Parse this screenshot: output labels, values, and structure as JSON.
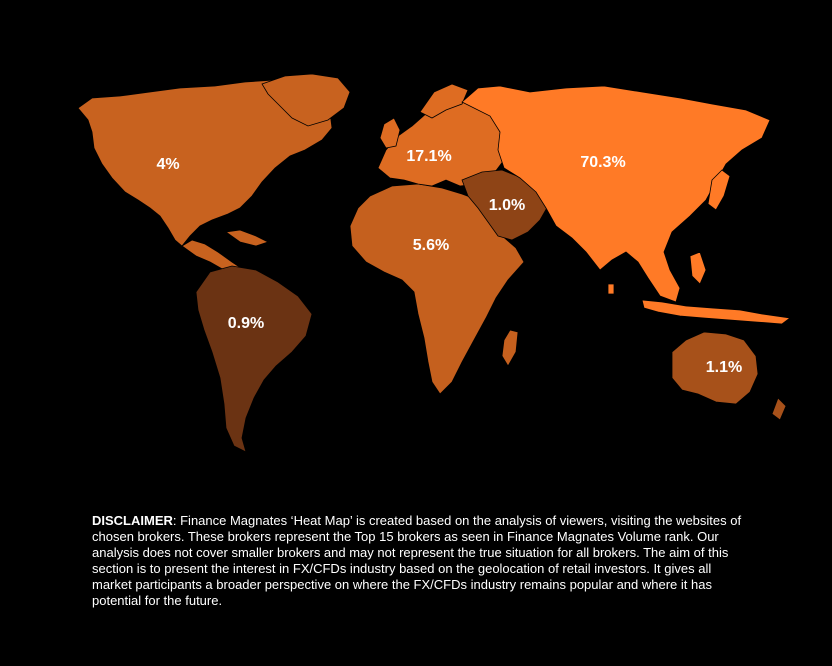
{
  "regions": [
    {
      "id": "north-america",
      "label": "4%",
      "color": "#c8621f"
    },
    {
      "id": "europe",
      "label": "17.1%",
      "color": "#de6c22"
    },
    {
      "id": "asia",
      "label": "70.3%",
      "color": "#ff7a26"
    },
    {
      "id": "middle-east",
      "label": "1.0%",
      "color": "#8e4416"
    },
    {
      "id": "africa",
      "label": "5.6%",
      "color": "#c5601e"
    },
    {
      "id": "south-america",
      "label": "0.9%",
      "color": "#6b3313"
    },
    {
      "id": "oceania",
      "label": "1.1%",
      "color": "#a7511a"
    }
  ],
  "disclaimer": {
    "heading": "DISCLAIMER",
    "text": ": Finance Magnates ‘Heat Map’ is created based on the analysis of viewers, visiting the websites of chosen brokers. These brokers represent the Top 15 brokers as seen in Finance Magnates Volume rank. Our analysis does not cover smaller brokers and may not represent the true situation for all brokers. The aim of this section is to present the interest in FX/CFDs industry based on the geolocation of retail investors. It gives all market participants a broader perspective on where the FX/CFDs industry remains popular and where it has potential for the future."
  }
}
